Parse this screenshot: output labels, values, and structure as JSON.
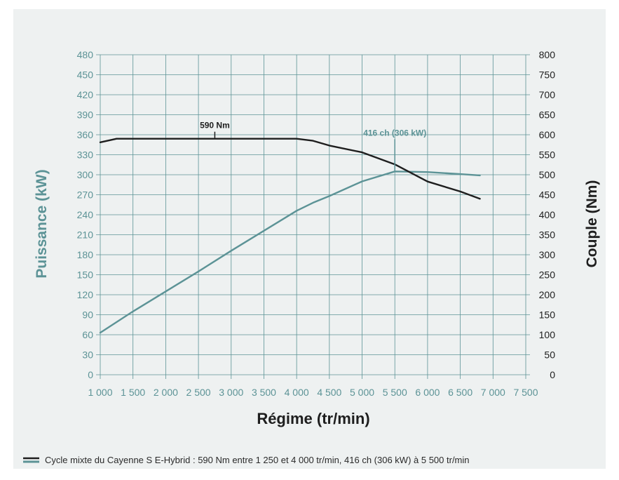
{
  "chart_data": {
    "type": "line",
    "xlabel": "Régime (tr/min)",
    "ylabel_left": "Puissance (kW)",
    "ylabel_right": "Couple (Nm)",
    "xlim": [
      1000,
      7500
    ],
    "ylim_left": [
      0,
      480
    ],
    "ylim_right": [
      0,
      800
    ],
    "x_ticks": [
      "1 000",
      "1 500",
      "2 000",
      "2 500",
      "3 000",
      "3 500",
      "4 000",
      "4 500",
      "5 000",
      "5 500",
      "6 000",
      "6 500",
      "7 000",
      "7 500"
    ],
    "x_tick_values": [
      1000,
      1500,
      2000,
      2500,
      3000,
      3500,
      4000,
      4500,
      5000,
      5500,
      6000,
      6500,
      7000,
      7500
    ],
    "y_left_ticks": [
      0,
      30,
      60,
      90,
      120,
      150,
      180,
      210,
      240,
      270,
      300,
      330,
      360,
      390,
      420,
      450,
      480
    ],
    "y_right_ticks": [
      0,
      50,
      100,
      150,
      200,
      250,
      300,
      350,
      400,
      450,
      500,
      550,
      600,
      650,
      700,
      750,
      800
    ],
    "grid": true,
    "series": [
      {
        "axis": "left",
        "color": "#5c9396",
        "x": [
          1000,
          1500,
          2000,
          2500,
          3000,
          3500,
          4000,
          4250,
          4500,
          5000,
          5500,
          6000,
          6500,
          6800
        ],
        "values": [
          63,
          95,
          125,
          155,
          186,
          216,
          246,
          258,
          268,
          290,
          305,
          304,
          301,
          299
        ]
      },
      {
        "axis": "right",
        "color": "#1e1e1e",
        "x": [
          1000,
          1250,
          1500,
          2000,
          2500,
          3000,
          3500,
          4000,
          4250,
          4500,
          5000,
          5500,
          6000,
          6500,
          6800
        ],
        "values": [
          581,
          590,
          590,
          590,
          590,
          590,
          590,
          590,
          585,
          573,
          556,
          526,
          483,
          458,
          440
        ]
      }
    ],
    "annotations": [
      {
        "text": "590 Nm",
        "x": 2750,
        "y": 590,
        "axis": "right",
        "color": "#1e1e1e"
      },
      {
        "text": "416 ch (306 kW)",
        "x": 5500,
        "y": 306,
        "axis": "left",
        "color": "#5c9396"
      }
    ],
    "legend": {
      "placement": "bottom-left",
      "text": "Cycle mixte du Cayenne S E-Hybrid : 590 Nm entre 1 250 et 4 000 tr/min, 416 ch (306 kW) à 5 500 tr/min"
    }
  }
}
